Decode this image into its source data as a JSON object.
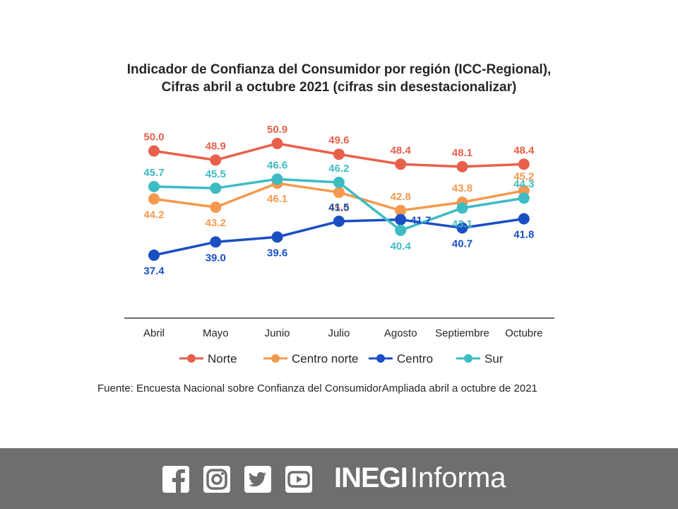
{
  "chart_data": {
    "type": "line",
    "title": "Indicador de Confianza del Consumidor por región (ICC-Regional),",
    "subtitle": "Cifras abril a octubre 2021 (cifras sin desestacionalizar)",
    "categories": [
      "Abril",
      "Mayo",
      "Junio",
      "Julio",
      "Agosto",
      "Septiembre",
      "Octubre"
    ],
    "series": [
      {
        "name": "Norte",
        "color": "#e8604c",
        "values": [
          50.0,
          48.9,
          50.9,
          49.6,
          48.4,
          48.1,
          48.4
        ],
        "labels": [
          "50.0",
          "48.9",
          "50.9",
          "49.6",
          "48.4",
          "48.1",
          "48.4"
        ]
      },
      {
        "name": "Centro norte",
        "color": "#f5994e",
        "values": [
          44.2,
          43.2,
          46.1,
          45.0,
          42.8,
          43.8,
          45.2
        ],
        "labels": [
          "44.2",
          "43.2",
          "46.1",
          "45.0",
          "42.8",
          "43.8",
          "45.2"
        ]
      },
      {
        "name": "Centro",
        "color": "#1a4fc4",
        "values": [
          37.4,
          39.0,
          39.6,
          41.5,
          41.7,
          40.7,
          41.8
        ],
        "labels": [
          "37.4",
          "39.0",
          "39.6",
          "41.5",
          "41.7",
          "40.7",
          "41.8"
        ]
      },
      {
        "name": "Sur",
        "color": "#3dbcc4",
        "values": [
          45.7,
          45.5,
          46.6,
          46.2,
          40.4,
          43.1,
          44.3
        ],
        "labels": [
          "45.7",
          "45.5",
          "46.6",
          "46.2",
          "40.4",
          "43.1",
          "44.3"
        ]
      }
    ],
    "ylim": [
      33,
      53
    ],
    "grid": false,
    "legend_position": "bottom"
  },
  "source": "Fuente: Encuesta Nacional sobre Confianza del ConsumidorAmpliada abril a octubre de 2021",
  "footer": {
    "brand_bold": "INEGI",
    "brand_light": "Informa",
    "icons": [
      "facebook-icon",
      "instagram-icon",
      "twitter-icon",
      "youtube-icon"
    ],
    "background_color": "#6e6e6e"
  }
}
